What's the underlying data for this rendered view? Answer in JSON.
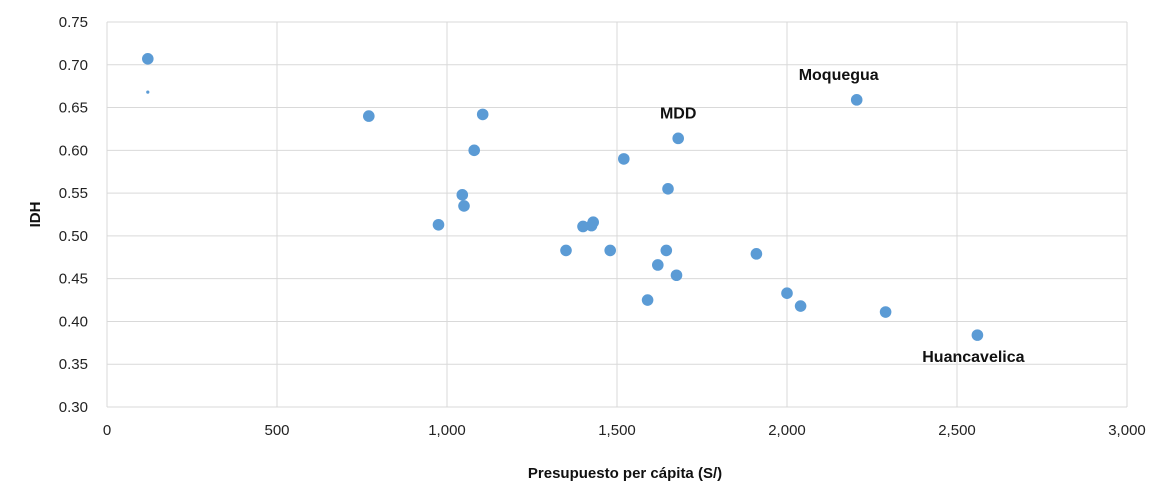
{
  "chart_data": {
    "type": "scatter",
    "title": "",
    "xlabel": "Presupuesto per cápita (S/)",
    "ylabel": "IDH",
    "xlim": [
      0,
      3000
    ],
    "ylim": [
      0.3,
      0.75
    ],
    "x_ticks": [
      0,
      500,
      1000,
      1500,
      2000,
      2500,
      3000
    ],
    "x_tick_labels": [
      "0",
      "500",
      "1,000",
      "1,500",
      "2,000",
      "2,500",
      "3,000"
    ],
    "y_ticks": [
      0.3,
      0.35,
      0.4,
      0.45,
      0.5,
      0.55,
      0.6,
      0.65,
      0.7,
      0.75
    ],
    "y_tick_labels": [
      "0.30",
      "0.35",
      "0.40",
      "0.45",
      "0.50",
      "0.55",
      "0.60",
      "0.65",
      "0.70",
      "0.75"
    ],
    "grid": true,
    "marker_color": "#5B9BD5",
    "points": [
      {
        "x": 120,
        "y": 0.707
      },
      {
        "x": 120,
        "y": 0.668,
        "small": true
      },
      {
        "x": 770,
        "y": 0.64
      },
      {
        "x": 1105,
        "y": 0.642
      },
      {
        "x": 1080,
        "y": 0.6
      },
      {
        "x": 1045,
        "y": 0.548
      },
      {
        "x": 1050,
        "y": 0.535
      },
      {
        "x": 975,
        "y": 0.513
      },
      {
        "x": 1350,
        "y": 0.483
      },
      {
        "x": 1400,
        "y": 0.511
      },
      {
        "x": 1425,
        "y": 0.512
      },
      {
        "x": 1430,
        "y": 0.516
      },
      {
        "x": 1480,
        "y": 0.483
      },
      {
        "x": 1520,
        "y": 0.59
      },
      {
        "x": 1590,
        "y": 0.425
      },
      {
        "x": 1620,
        "y": 0.466
      },
      {
        "x": 1645,
        "y": 0.483
      },
      {
        "x": 1650,
        "y": 0.555
      },
      {
        "x": 1675,
        "y": 0.454
      },
      {
        "x": 1680,
        "y": 0.614
      },
      {
        "x": 1910,
        "y": 0.479
      },
      {
        "x": 2000,
        "y": 0.433
      },
      {
        "x": 2040,
        "y": 0.418
      },
      {
        "x": 2205,
        "y": 0.659
      },
      {
        "x": 2290,
        "y": 0.411
      },
      {
        "x": 2560,
        "y": 0.384
      }
    ],
    "annotations": [
      {
        "text": "MDD",
        "x": 1680,
        "y": 0.614
      },
      {
        "text": "Moquegua",
        "x": 2205,
        "y": 0.659
      },
      {
        "text": "Huancavelica",
        "x": 2560,
        "y": 0.384
      }
    ]
  }
}
